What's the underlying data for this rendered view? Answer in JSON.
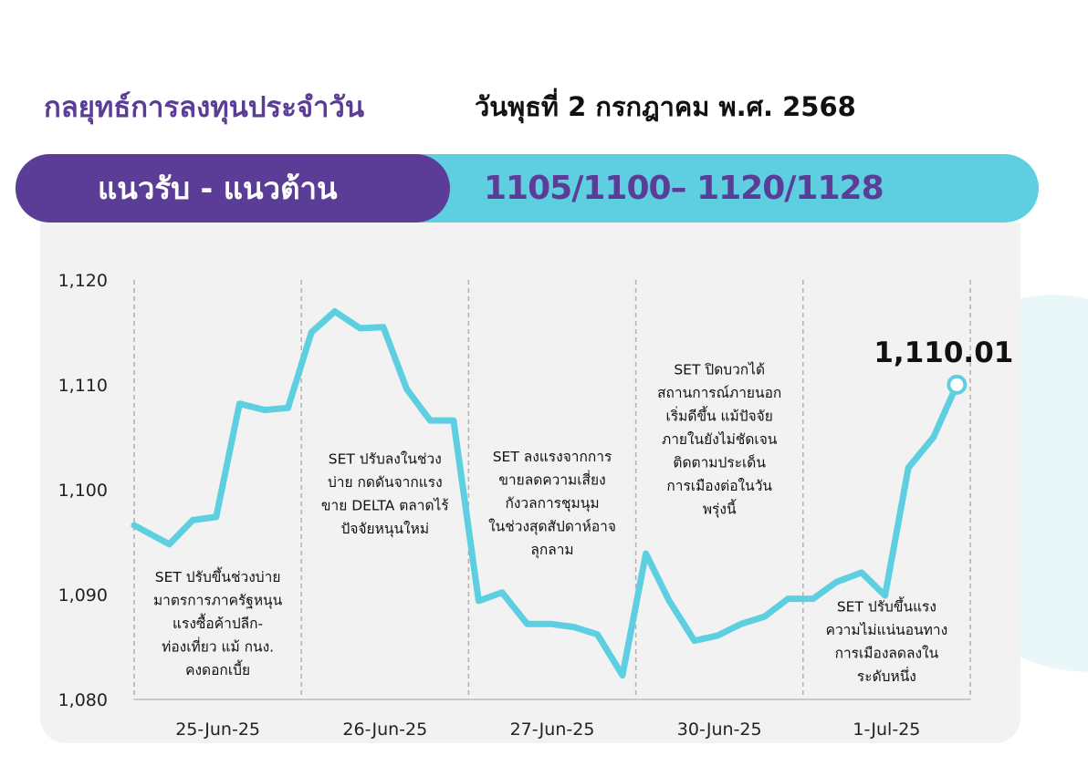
{
  "header": {
    "title": "กลยุทธ์การลงทุนประจำวัน",
    "date": "วันพุธที่ 2 กรกฎาคม พ.ศ. 2568"
  },
  "levels": {
    "label": "แนวรับ - แนวต้าน",
    "values": "1105/1100– 1120/1128"
  },
  "colors": {
    "purple": "#5b3c97",
    "cyan": "#5ecfe0",
    "line": "#5ecfe0",
    "panel": "#f2f2f2"
  },
  "chart_data": {
    "type": "line",
    "ylim": [
      1080,
      1120
    ],
    "yticks": [
      1080,
      1090,
      1100,
      1110,
      1120
    ],
    "ytick_labels": [
      "1,080",
      "1,090",
      "1,100",
      "1,110",
      "1,120"
    ],
    "xlim": [
      0,
      5
    ],
    "day_labels": [
      "25-Jun-25",
      "26-Jun-25",
      "27-Jun-25",
      "30-Jun-25",
      "1-Jul-25"
    ],
    "grid": "vertical dashed day separators",
    "series": [
      {
        "x": [
          0.0,
          0.21,
          0.35,
          0.49,
          0.63,
          0.78,
          0.92,
          1.06,
          1.2,
          1.35,
          1.49,
          1.63,
          1.77,
          1.91,
          2.06,
          2.2,
          2.35,
          2.49,
          2.63,
          2.77,
          2.92,
          3.06,
          3.2,
          3.35,
          3.49,
          3.63,
          3.77,
          3.91,
          4.06,
          4.2,
          4.35,
          4.49,
          4.63,
          4.78,
          4.92
        ],
        "values": [
          1096.6,
          1094.8,
          1097.1,
          1097.4,
          1108.2,
          1107.6,
          1107.8,
          1115.0,
          1117.0,
          1115.4,
          1115.5,
          1109.6,
          1106.6,
          1106.6,
          1089.4,
          1090.2,
          1087.2,
          1087.2,
          1086.9,
          1086.2,
          1082.3,
          1093.9,
          1089.4,
          1085.6,
          1086.1,
          1087.2,
          1087.9,
          1089.6,
          1089.6,
          1091.2,
          1092.1,
          1089.9,
          1102.1,
          1105.0,
          1110.01
        ]
      }
    ],
    "last_value_label": "1,110.01",
    "annotations": [
      {
        "day": 0,
        "y": 1091.2,
        "lines": [
          "SET ปรับขึ้นช่วงบ่าย",
          "มาตรการภาครัฐหนุน",
          "แรงซื้อค้าปลีก-",
          "ท่องเที่ยว แม้ กนง.",
          "คงดอกเบี้ย"
        ]
      },
      {
        "day": 1,
        "y": 1102.5,
        "lines": [
          "SET ปรับลงในช่วง",
          "บ่าย กดดันจากแรง",
          "ขาย DELTA ตลาดไร้",
          "ปัจจัยหนุนใหม่"
        ]
      },
      {
        "day": 2,
        "y": 1102.7,
        "lines": [
          "SET ลงแรงจากการ",
          "ขายลดความเสี่ยง",
          "กังวลการชุมนุม",
          "ในช่วงสุดสัปดาห์อาจ",
          "ลุกลาม"
        ]
      },
      {
        "day": 3,
        "y": 1111.0,
        "lines": [
          "SET ปิดบวกได้",
          "สถานการณ์ภายนอก",
          "เริ่มดีขึ้น แม้ปัจจัย",
          "ภายในยังไม่ชัดเจน",
          "ติดตามประเด็น",
          "การเมืองต่อในวัน",
          "พรุ่งนี้"
        ]
      },
      {
        "day": 4,
        "y": 1088.4,
        "lines": [
          "SET ปรับขึ้นแรง",
          "ความไม่แน่นอนทาง",
          "การเมืองลดลงใน",
          "ระดับหนึ่ง"
        ]
      }
    ]
  }
}
